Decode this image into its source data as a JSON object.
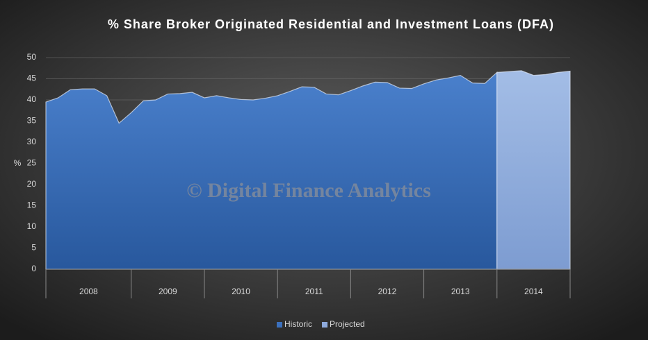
{
  "chart_data": {
    "type": "area",
    "title": "% Share Broker Originated Residential and Investment Loans (DFA)",
    "y_label": "%",
    "watermark": "© Digital Finance Analytics",
    "categories": [
      "2008",
      null,
      null,
      null,
      null,
      null,
      null,
      "2009",
      null,
      null,
      null,
      null,
      null,
      "2010",
      null,
      null,
      null,
      null,
      null,
      "2011",
      null,
      null,
      null,
      null,
      null,
      "2012",
      null,
      null,
      null,
      null,
      null,
      "2013",
      null,
      null,
      null,
      null,
      null,
      "2014",
      null,
      null,
      null,
      null,
      null,
      null
    ],
    "series": [
      {
        "name": "Historic",
        "color": "#3b70bd",
        "values": [
          39.5,
          40.5,
          42.4,
          42.6,
          42.6,
          41,
          34.5,
          37,
          39.8,
          40,
          41.4,
          41.5,
          41.8,
          40.5,
          41,
          40.5,
          40.1,
          40,
          40.4,
          41,
          42,
          43.1,
          43,
          41.4,
          41.2,
          42.2,
          43.3,
          44.2,
          44.1,
          42.8,
          42.7,
          43.8,
          44.7,
          45.2,
          45.8,
          44,
          43.9,
          46.5,
          null,
          null,
          null,
          null,
          null,
          null
        ]
      },
      {
        "name": "Projected",
        "color": "#8eaadc",
        "values": [
          null,
          null,
          null,
          null,
          null,
          null,
          null,
          null,
          null,
          null,
          null,
          null,
          null,
          null,
          null,
          null,
          null,
          null,
          null,
          null,
          null,
          null,
          null,
          null,
          null,
          null,
          null,
          null,
          null,
          null,
          null,
          null,
          null,
          null,
          null,
          null,
          null,
          46.5,
          46.7,
          46.9,
          45.8,
          46,
          46.5,
          46.8
        ]
      }
    ],
    "ylim": [
      0,
      50
    ],
    "yticks": [
      0,
      5,
      10,
      15,
      20,
      25,
      30,
      35,
      40,
      45,
      50
    ],
    "grid": true,
    "legend": "bottom"
  }
}
